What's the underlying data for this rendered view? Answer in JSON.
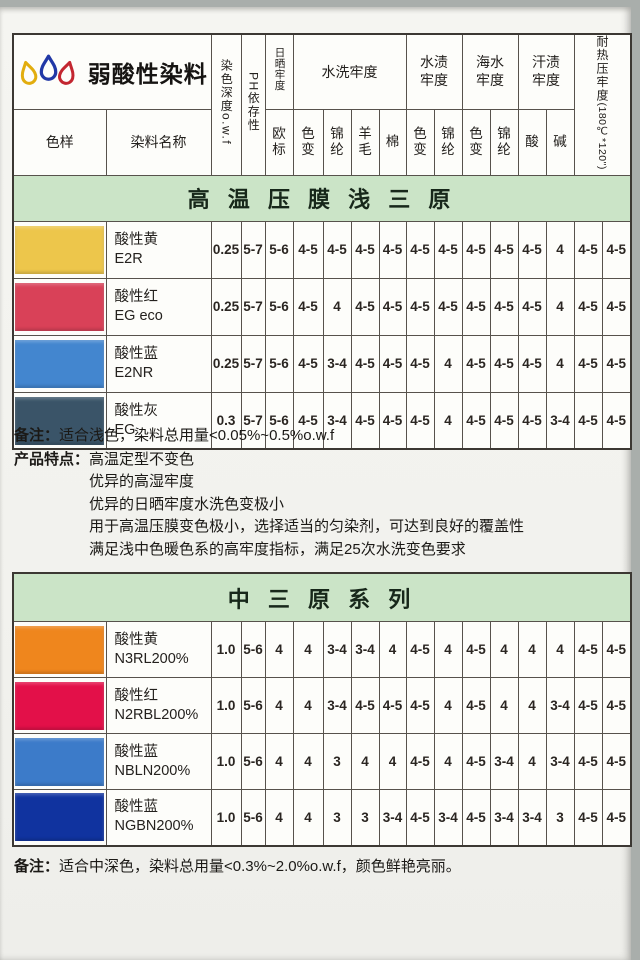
{
  "header": {
    "brand": "弱酸性染料",
    "sample": "色样",
    "name": "染料名称",
    "depth": "染色深度o.w.f",
    "ph": "PH依存性",
    "sun": "日晒牢度",
    "sun_sub": "欧标",
    "wash": "水洗牢度",
    "wash_subs": [
      "色变",
      "锦纶",
      "羊毛",
      "棉"
    ],
    "water": "水渍牢度",
    "water_subs": [
      "色变",
      "锦纶"
    ],
    "sea": "海水牢度",
    "sea_subs": [
      "色变",
      "锦纶"
    ],
    "sweat": "汗渍牢度",
    "sweat_subs": [
      "酸",
      "碱"
    ],
    "heat_line1": "耐热压牢度",
    "heat_line2": "(180℃*120\")"
  },
  "logo_colors": {
    "yellow": "#e2ad0e",
    "blue": "#2138a6",
    "red": "#c32630"
  },
  "banner_bg": "#cbe4c7",
  "table1": {
    "banner": "高 温 压 膜 浅 三 原",
    "rows": [
      {
        "swatch": "#edc64b",
        "name1": "酸性黄",
        "name2": "E2R",
        "values": [
          "0.25",
          "5-7",
          "5-6",
          "4-5",
          "4-5",
          "4-5",
          "4-5",
          "4-5",
          "4-5",
          "4-5",
          "4-5",
          "4-5",
          "4",
          "4-5",
          "4-5"
        ]
      },
      {
        "swatch": "#d94158",
        "name1": "酸性红",
        "name2": "EG eco",
        "values": [
          "0.25",
          "5-7",
          "5-6",
          "4-5",
          "4",
          "4-5",
          "4-5",
          "4-5",
          "4-5",
          "4-5",
          "4-5",
          "4-5",
          "4",
          "4-5",
          "4-5"
        ]
      },
      {
        "swatch": "#4386cf",
        "name1": "酸性蓝",
        "name2": "E2NR",
        "values": [
          "0.25",
          "5-7",
          "5-6",
          "4-5",
          "3-4",
          "4-5",
          "4-5",
          "4-5",
          "4",
          "4-5",
          "4-5",
          "4-5",
          "4",
          "4-5",
          "4-5"
        ]
      },
      {
        "swatch": "#3a5468",
        "name1": "酸性灰",
        "name2": "EG",
        "values": [
          "0.3",
          "5-7",
          "5-6",
          "4-5",
          "3-4",
          "4-5",
          "4-5",
          "4-5",
          "4",
          "4-5",
          "4-5",
          "4-5",
          "3-4",
          "4-5",
          "4-5"
        ]
      }
    ]
  },
  "table2": {
    "banner": "中 三 原 系 列",
    "rows": [
      {
        "swatch": "#ef861d",
        "name1": "酸性黄",
        "name2": "N3RL200%",
        "values": [
          "1.0",
          "5-6",
          "4",
          "4",
          "3-4",
          "3-4",
          "4",
          "4-5",
          "4",
          "4-5",
          "4",
          "4",
          "4",
          "4-5",
          "4-5"
        ]
      },
      {
        "swatch": "#e31049",
        "name1": "酸性红",
        "name2": "N2RBL200%",
        "values": [
          "1.0",
          "5-6",
          "4",
          "4",
          "3-4",
          "4-5",
          "4-5",
          "4-5",
          "4",
          "4-5",
          "4",
          "4",
          "3-4",
          "4-5",
          "4-5"
        ]
      },
      {
        "swatch": "#3c7bc9",
        "name1": "酸性蓝",
        "name2": "NBLN200%",
        "values": [
          "1.0",
          "5-6",
          "4",
          "4",
          "3",
          "4",
          "4",
          "4-5",
          "4",
          "4-5",
          "3-4",
          "4",
          "3-4",
          "4-5",
          "4-5"
        ]
      },
      {
        "swatch": "#10339f",
        "name1": "酸性蓝",
        "name2": "NGBN200%",
        "values": [
          "1.0",
          "5-6",
          "4",
          "4",
          "3",
          "3",
          "3-4",
          "4-5",
          "3-4",
          "4-5",
          "3-4",
          "3-4",
          "3",
          "4-5",
          "4-5"
        ]
      }
    ]
  },
  "notes": {
    "note1_label": "备注：",
    "note1_text": "适合浅色，染料总用量<0.05%~0.5%o.w.f",
    "features_label": "产品特点：",
    "feature_lines": [
      "高温定型不变色",
      "优异的高湿牢度",
      "优异的日晒牢度水洗色变极小",
      "用于高温压膜变色极小，选择适当的匀染剂，可达到良好的覆盖性",
      "满足浅中色暖色系的高牢度指标，满足25次水洗变色要求"
    ],
    "note2_label": "备注：",
    "note2_text": "适合中深色，染料总用量<0.3%~2.0%o.w.f，颜色鲜艳亮丽。"
  }
}
